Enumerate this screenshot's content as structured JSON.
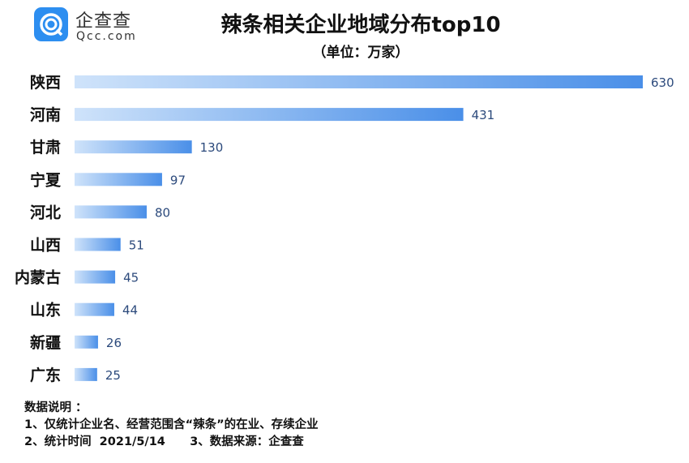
{
  "logo": {
    "cn": "企查查",
    "en": "Qcc.com"
  },
  "chart_data": {
    "type": "bar",
    "orientation": "horizontal",
    "title": "辣条相关企业地域分布top10",
    "subtitle": "（单位：万家）",
    "categories": [
      "陕西",
      "河南",
      "甘肃",
      "宁夏",
      "河北",
      "山西",
      "内蒙古",
      "山东",
      "新疆",
      "广东"
    ],
    "values": [
      630,
      431,
      130,
      97,
      80,
      51,
      45,
      44,
      26,
      25
    ],
    "xlim": [
      0,
      630
    ],
    "grid": false,
    "colors": {
      "bar_start": "#cfe3fa",
      "bar_end": "#4a8fe8",
      "value_label": "#2c4a7c"
    }
  },
  "notes": {
    "heading": "数据说明 ：",
    "line1": "1、仅统计企业名、经营范围含“辣条”的在业、存续企业",
    "line2": "2、统计时间  2021/5/14      3、数据来源：企查查"
  }
}
